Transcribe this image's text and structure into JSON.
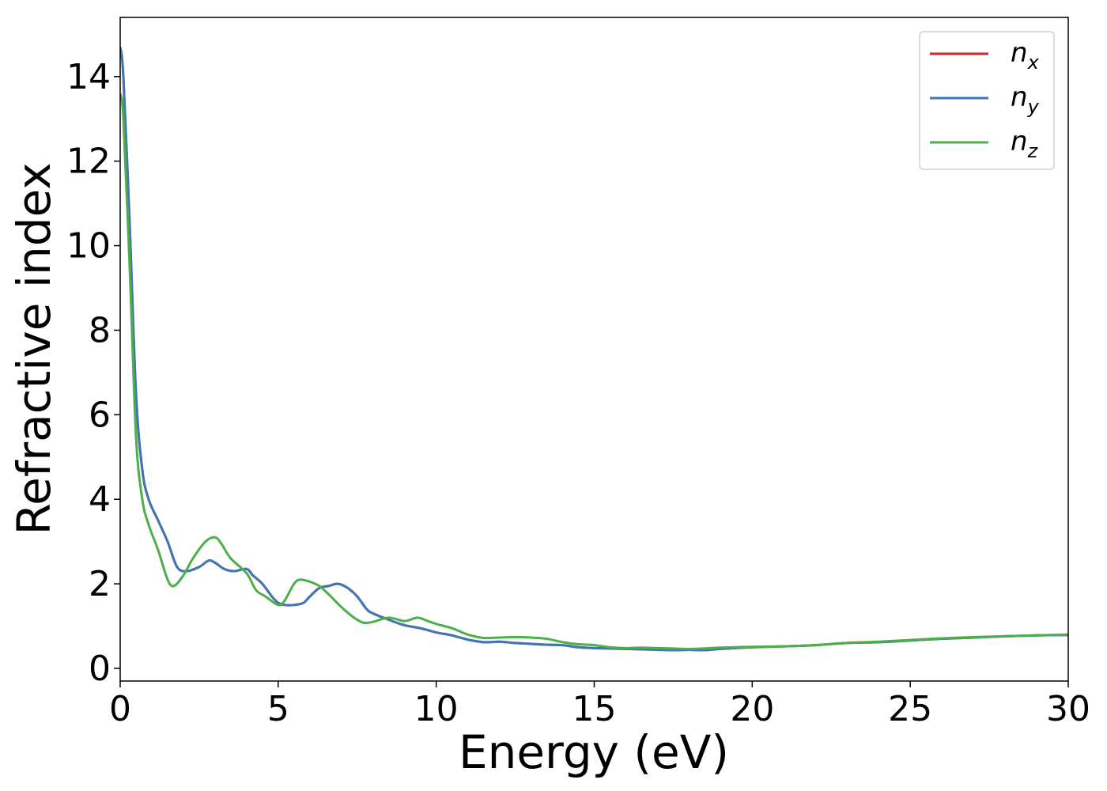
{
  "chart_data": {
    "type": "line",
    "title": "",
    "xlabel": "Energy (eV)",
    "ylabel": "Refractive index",
    "xlim": [
      0,
      30
    ],
    "ylim": [
      -0.3,
      15.4
    ],
    "xticks": [
      0,
      5,
      10,
      15,
      20,
      25,
      30
    ],
    "yticks": [
      0,
      2,
      4,
      6,
      8,
      10,
      12,
      14
    ],
    "grid": false,
    "legend_position": "top-right",
    "series": [
      {
        "name": "n_x",
        "label_base": "n",
        "label_sub": "x",
        "color": "#d62728",
        "x": [
          0,
          0.1,
          0.3,
          0.5,
          0.7,
          0.9,
          1.2,
          1.5,
          1.8,
          2.1,
          2.5,
          2.8,
          3.0,
          3.3,
          3.6,
          4.0,
          4.2,
          4.5,
          4.8,
          5.0,
          5.2,
          5.5,
          5.8,
          6.0,
          6.3,
          6.6,
          6.9,
          7.2,
          7.5,
          7.8,
          8.0,
          8.5,
          9.0,
          9.5,
          10.0,
          10.5,
          11.0,
          11.5,
          12.0,
          12.5,
          13.0,
          13.5,
          14.0,
          14.5,
          15.0,
          15.5,
          16.0,
          16.5,
          17.0,
          17.5,
          18.0,
          18.5,
          19.0,
          20.0,
          21.0,
          22.0,
          23.0,
          24.0,
          25.0,
          26.0,
          27.0,
          28.0,
          29.0,
          30.0
        ],
        "y": [
          14.7,
          14.0,
          10.5,
          6.5,
          4.7,
          4.0,
          3.5,
          3.0,
          2.4,
          2.3,
          2.4,
          2.55,
          2.5,
          2.35,
          2.3,
          2.35,
          2.2,
          2.0,
          1.7,
          1.55,
          1.5,
          1.5,
          1.55,
          1.7,
          1.9,
          1.95,
          2.0,
          1.9,
          1.7,
          1.4,
          1.3,
          1.15,
          1.02,
          0.95,
          0.85,
          0.78,
          0.68,
          0.62,
          0.63,
          0.6,
          0.58,
          0.56,
          0.55,
          0.5,
          0.48,
          0.47,
          0.46,
          0.45,
          0.44,
          0.43,
          0.44,
          0.43,
          0.46,
          0.5,
          0.52,
          0.55,
          0.6,
          0.62,
          0.66,
          0.7,
          0.73,
          0.76,
          0.78,
          0.79
        ]
      },
      {
        "name": "n_y",
        "label_base": "n",
        "label_sub": "y",
        "color": "#3d78b4",
        "x": [
          0,
          0.1,
          0.3,
          0.5,
          0.7,
          0.9,
          1.2,
          1.5,
          1.8,
          2.1,
          2.5,
          2.8,
          3.0,
          3.3,
          3.6,
          4.0,
          4.2,
          4.5,
          4.8,
          5.0,
          5.2,
          5.5,
          5.8,
          6.0,
          6.3,
          6.6,
          6.9,
          7.2,
          7.5,
          7.8,
          8.0,
          8.5,
          9.0,
          9.5,
          10.0,
          10.5,
          11.0,
          11.5,
          12.0,
          12.5,
          13.0,
          13.5,
          14.0,
          14.5,
          15.0,
          15.5,
          16.0,
          16.5,
          17.0,
          17.5,
          18.0,
          18.5,
          19.0,
          20.0,
          21.0,
          22.0,
          23.0,
          24.0,
          25.0,
          26.0,
          27.0,
          28.0,
          29.0,
          30.0
        ],
        "y": [
          14.7,
          14.0,
          10.5,
          6.5,
          4.7,
          4.0,
          3.5,
          3.0,
          2.4,
          2.3,
          2.4,
          2.55,
          2.5,
          2.35,
          2.3,
          2.35,
          2.2,
          2.0,
          1.7,
          1.55,
          1.5,
          1.5,
          1.55,
          1.7,
          1.9,
          1.95,
          2.0,
          1.9,
          1.7,
          1.4,
          1.3,
          1.15,
          1.02,
          0.95,
          0.85,
          0.78,
          0.68,
          0.62,
          0.63,
          0.6,
          0.58,
          0.56,
          0.55,
          0.5,
          0.48,
          0.47,
          0.46,
          0.45,
          0.44,
          0.43,
          0.44,
          0.43,
          0.46,
          0.5,
          0.52,
          0.55,
          0.6,
          0.62,
          0.66,
          0.7,
          0.73,
          0.76,
          0.78,
          0.79
        ]
      },
      {
        "name": "n_z",
        "label_base": "n",
        "label_sub": "z",
        "color": "#4daf4a",
        "x": [
          0,
          0.1,
          0.3,
          0.5,
          0.7,
          0.9,
          1.2,
          1.5,
          1.7,
          2.0,
          2.3,
          2.7,
          3.0,
          3.2,
          3.5,
          4.0,
          4.3,
          4.6,
          5.0,
          5.2,
          5.5,
          5.7,
          6.0,
          6.3,
          6.6,
          7.0,
          7.4,
          7.7,
          8.0,
          8.5,
          9.0,
          9.4,
          9.7,
          10.0,
          10.5,
          11.0,
          11.5,
          12.0,
          12.5,
          13.0,
          13.5,
          14.0,
          14.5,
          15.0,
          15.5,
          16.0,
          16.5,
          17.0,
          17.5,
          18.0,
          18.5,
          19.0,
          20.0,
          21.0,
          22.0,
          23.0,
          24.0,
          25.0,
          26.0,
          27.0,
          28.0,
          29.0,
          30.0
        ],
        "y": [
          13.6,
          13.0,
          9.5,
          5.5,
          4.0,
          3.4,
          2.8,
          2.1,
          1.95,
          2.2,
          2.6,
          3.0,
          3.1,
          2.95,
          2.6,
          2.25,
          1.85,
          1.7,
          1.5,
          1.6,
          2.0,
          2.1,
          2.05,
          1.95,
          1.75,
          1.45,
          1.2,
          1.08,
          1.1,
          1.2,
          1.12,
          1.2,
          1.13,
          1.05,
          0.95,
          0.8,
          0.72,
          0.73,
          0.74,
          0.73,
          0.7,
          0.62,
          0.57,
          0.55,
          0.5,
          0.48,
          0.49,
          0.48,
          0.47,
          0.46,
          0.47,
          0.49,
          0.51,
          0.52,
          0.55,
          0.6,
          0.63,
          0.67,
          0.71,
          0.74,
          0.76,
          0.78,
          0.8
        ]
      }
    ]
  }
}
